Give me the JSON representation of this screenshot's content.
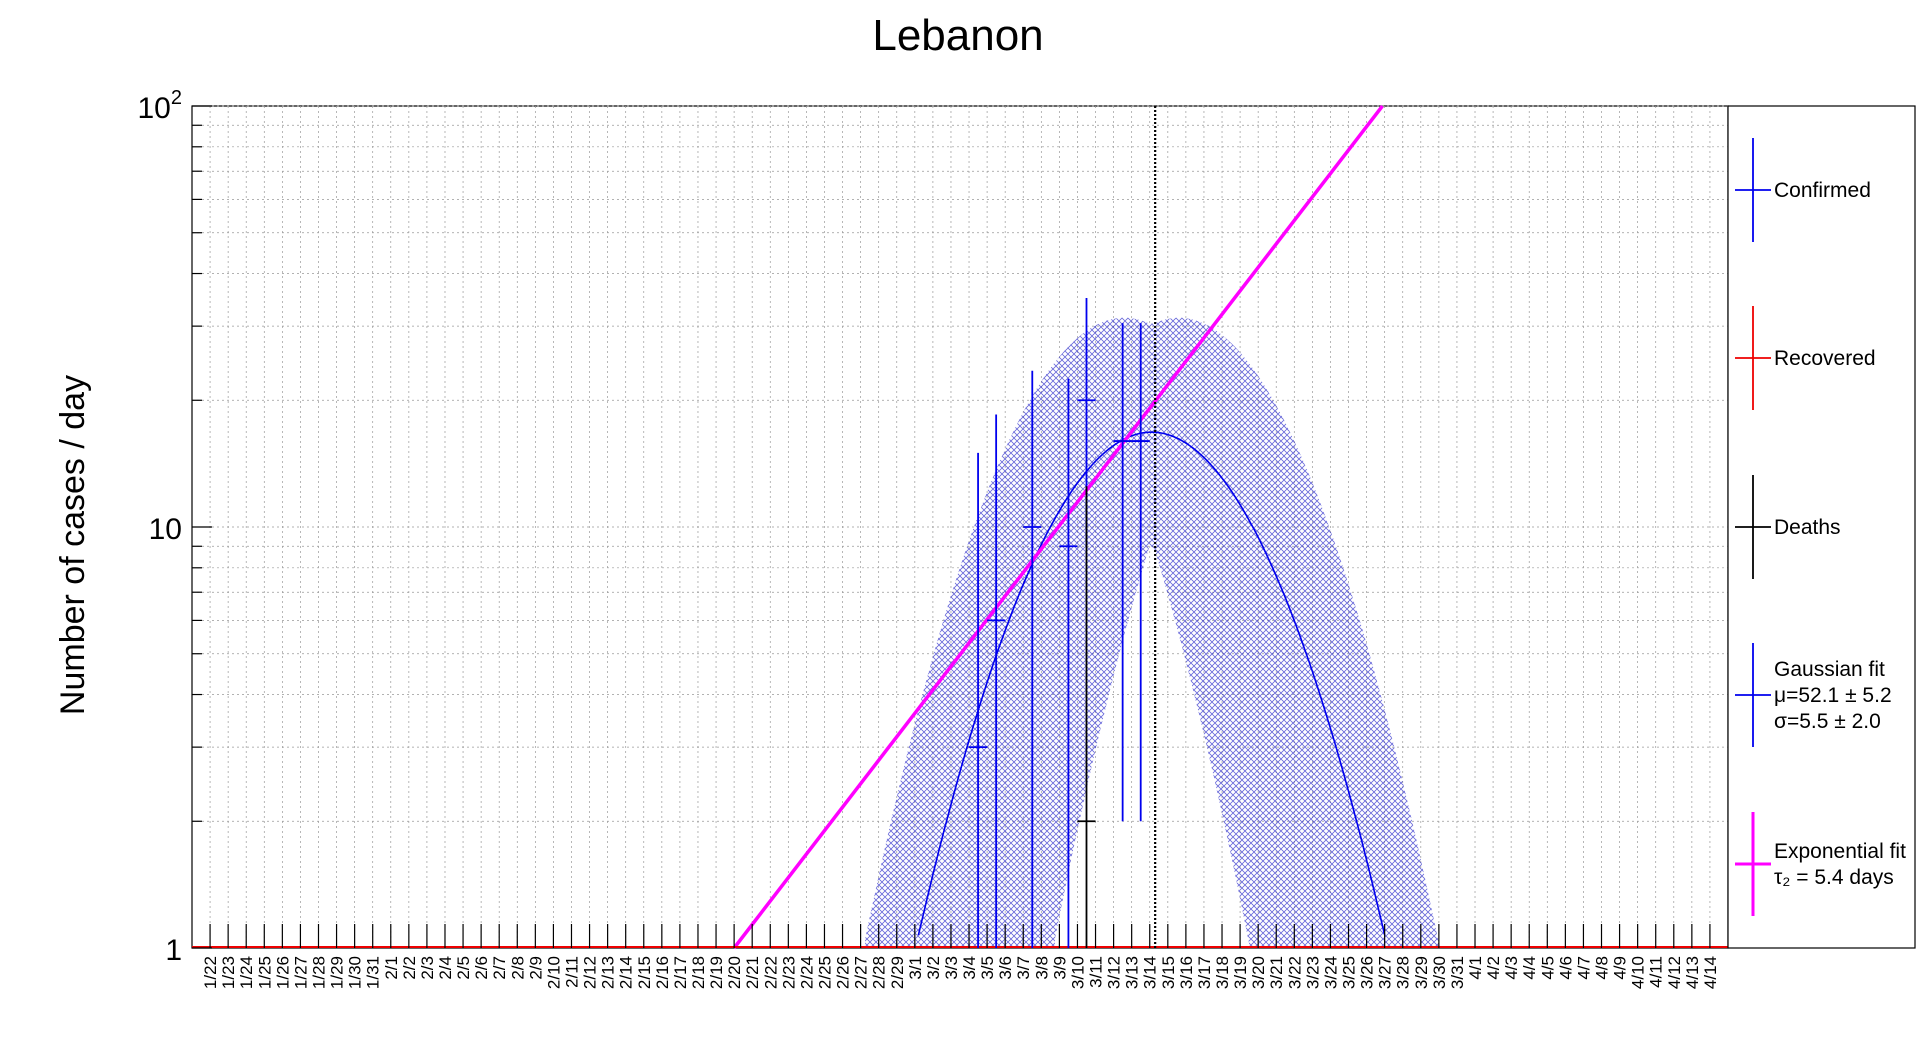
{
  "chart_data": {
    "type": "scatter",
    "title": "Lebanon",
    "xlabel": "",
    "ylabel": "Number of cases / day",
    "y_scale": "log",
    "ylim": [
      1,
      100
    ],
    "y_tick_labels": [
      {
        "value": 1,
        "base": "1",
        "exp": ""
      },
      {
        "value": 10,
        "base": "10",
        "exp": ""
      },
      {
        "value": 100,
        "base": "10",
        "exp": "2"
      }
    ],
    "x_tick_labels": [
      "1/22",
      "1/23",
      "1/24",
      "1/25",
      "1/26",
      "1/27",
      "1/28",
      "1/29",
      "1/30",
      "1/31",
      "2/1",
      "2/2",
      "2/3",
      "2/4",
      "2/5",
      "2/6",
      "2/7",
      "2/8",
      "2/9",
      "2/10",
      "2/11",
      "2/12",
      "2/13",
      "2/14",
      "2/15",
      "2/16",
      "2/17",
      "2/18",
      "2/19",
      "2/20",
      "2/21",
      "2/22",
      "2/23",
      "2/24",
      "2/25",
      "2/26",
      "2/27",
      "2/28",
      "2/29",
      "3/1",
      "3/2",
      "3/3",
      "3/4",
      "3/5",
      "3/6",
      "3/7",
      "3/8",
      "3/9",
      "3/10",
      "3/11",
      "3/12",
      "3/13",
      "3/14",
      "3/15",
      "3/16",
      "3/17",
      "3/18",
      "3/19",
      "3/20",
      "3/21",
      "3/22",
      "3/23",
      "3/24",
      "3/25",
      "3/26",
      "3/27",
      "3/28",
      "3/29",
      "3/30",
      "3/31",
      "4/1",
      "4/2",
      "4/3",
      "4/4",
      "4/5",
      "4/6",
      "4/7",
      "4/8",
      "4/9",
      "4/10",
      "4/11",
      "4/12",
      "4/13",
      "4/14"
    ],
    "grid": true,
    "marker_date": "3/14",
    "series": [
      {
        "name": "Confirmed",
        "color": "#0000ee",
        "points": [
          {
            "x": "3/4",
            "y": 3,
            "lo": 1,
            "hi": 15
          },
          {
            "x": "3/5",
            "y": 6,
            "lo": 1,
            "hi": 18.5
          },
          {
            "x": "3/7",
            "y": 10,
            "lo": 1,
            "hi": 23.5
          },
          {
            "x": "3/9",
            "y": 9,
            "lo": 1,
            "hi": 22.5
          },
          {
            "x": "3/10",
            "y": 20,
            "lo": 9,
            "hi": 35
          },
          {
            "x": "3/12",
            "y": 16,
            "lo": 2,
            "hi": 30.5
          },
          {
            "x": "3/13",
            "y": 16,
            "lo": 2,
            "hi": 30.5
          }
        ]
      },
      {
        "name": "Recovered",
        "color": "#ee0000",
        "points": []
      },
      {
        "name": "Deaths",
        "color": "#000000",
        "points": [
          {
            "x": "3/10",
            "y": 2,
            "lo": 1,
            "hi": 12.5
          }
        ]
      }
    ],
    "gaussian_fit": {
      "name": "Gaussian fit",
      "label_mu": "μ=52.1 ± 5.2",
      "label_sigma": "σ=5.5 ± 2.0",
      "mu": 52.1,
      "sigma": 5.5,
      "peak": 16.8,
      "color": "#0000ee",
      "band_color": "#3333cc"
    },
    "exponential_fit": {
      "name": "Exponential fit",
      "label": "τ₂ = 5.4 days",
      "doubling_days": 5.4,
      "start_date": "2/20",
      "color": "#ff00ff"
    },
    "legend": {
      "position": "right",
      "entries": [
        "Confirmed",
        "Recovered",
        "Deaths",
        "Gaussian fit",
        "Exponential fit"
      ]
    }
  }
}
